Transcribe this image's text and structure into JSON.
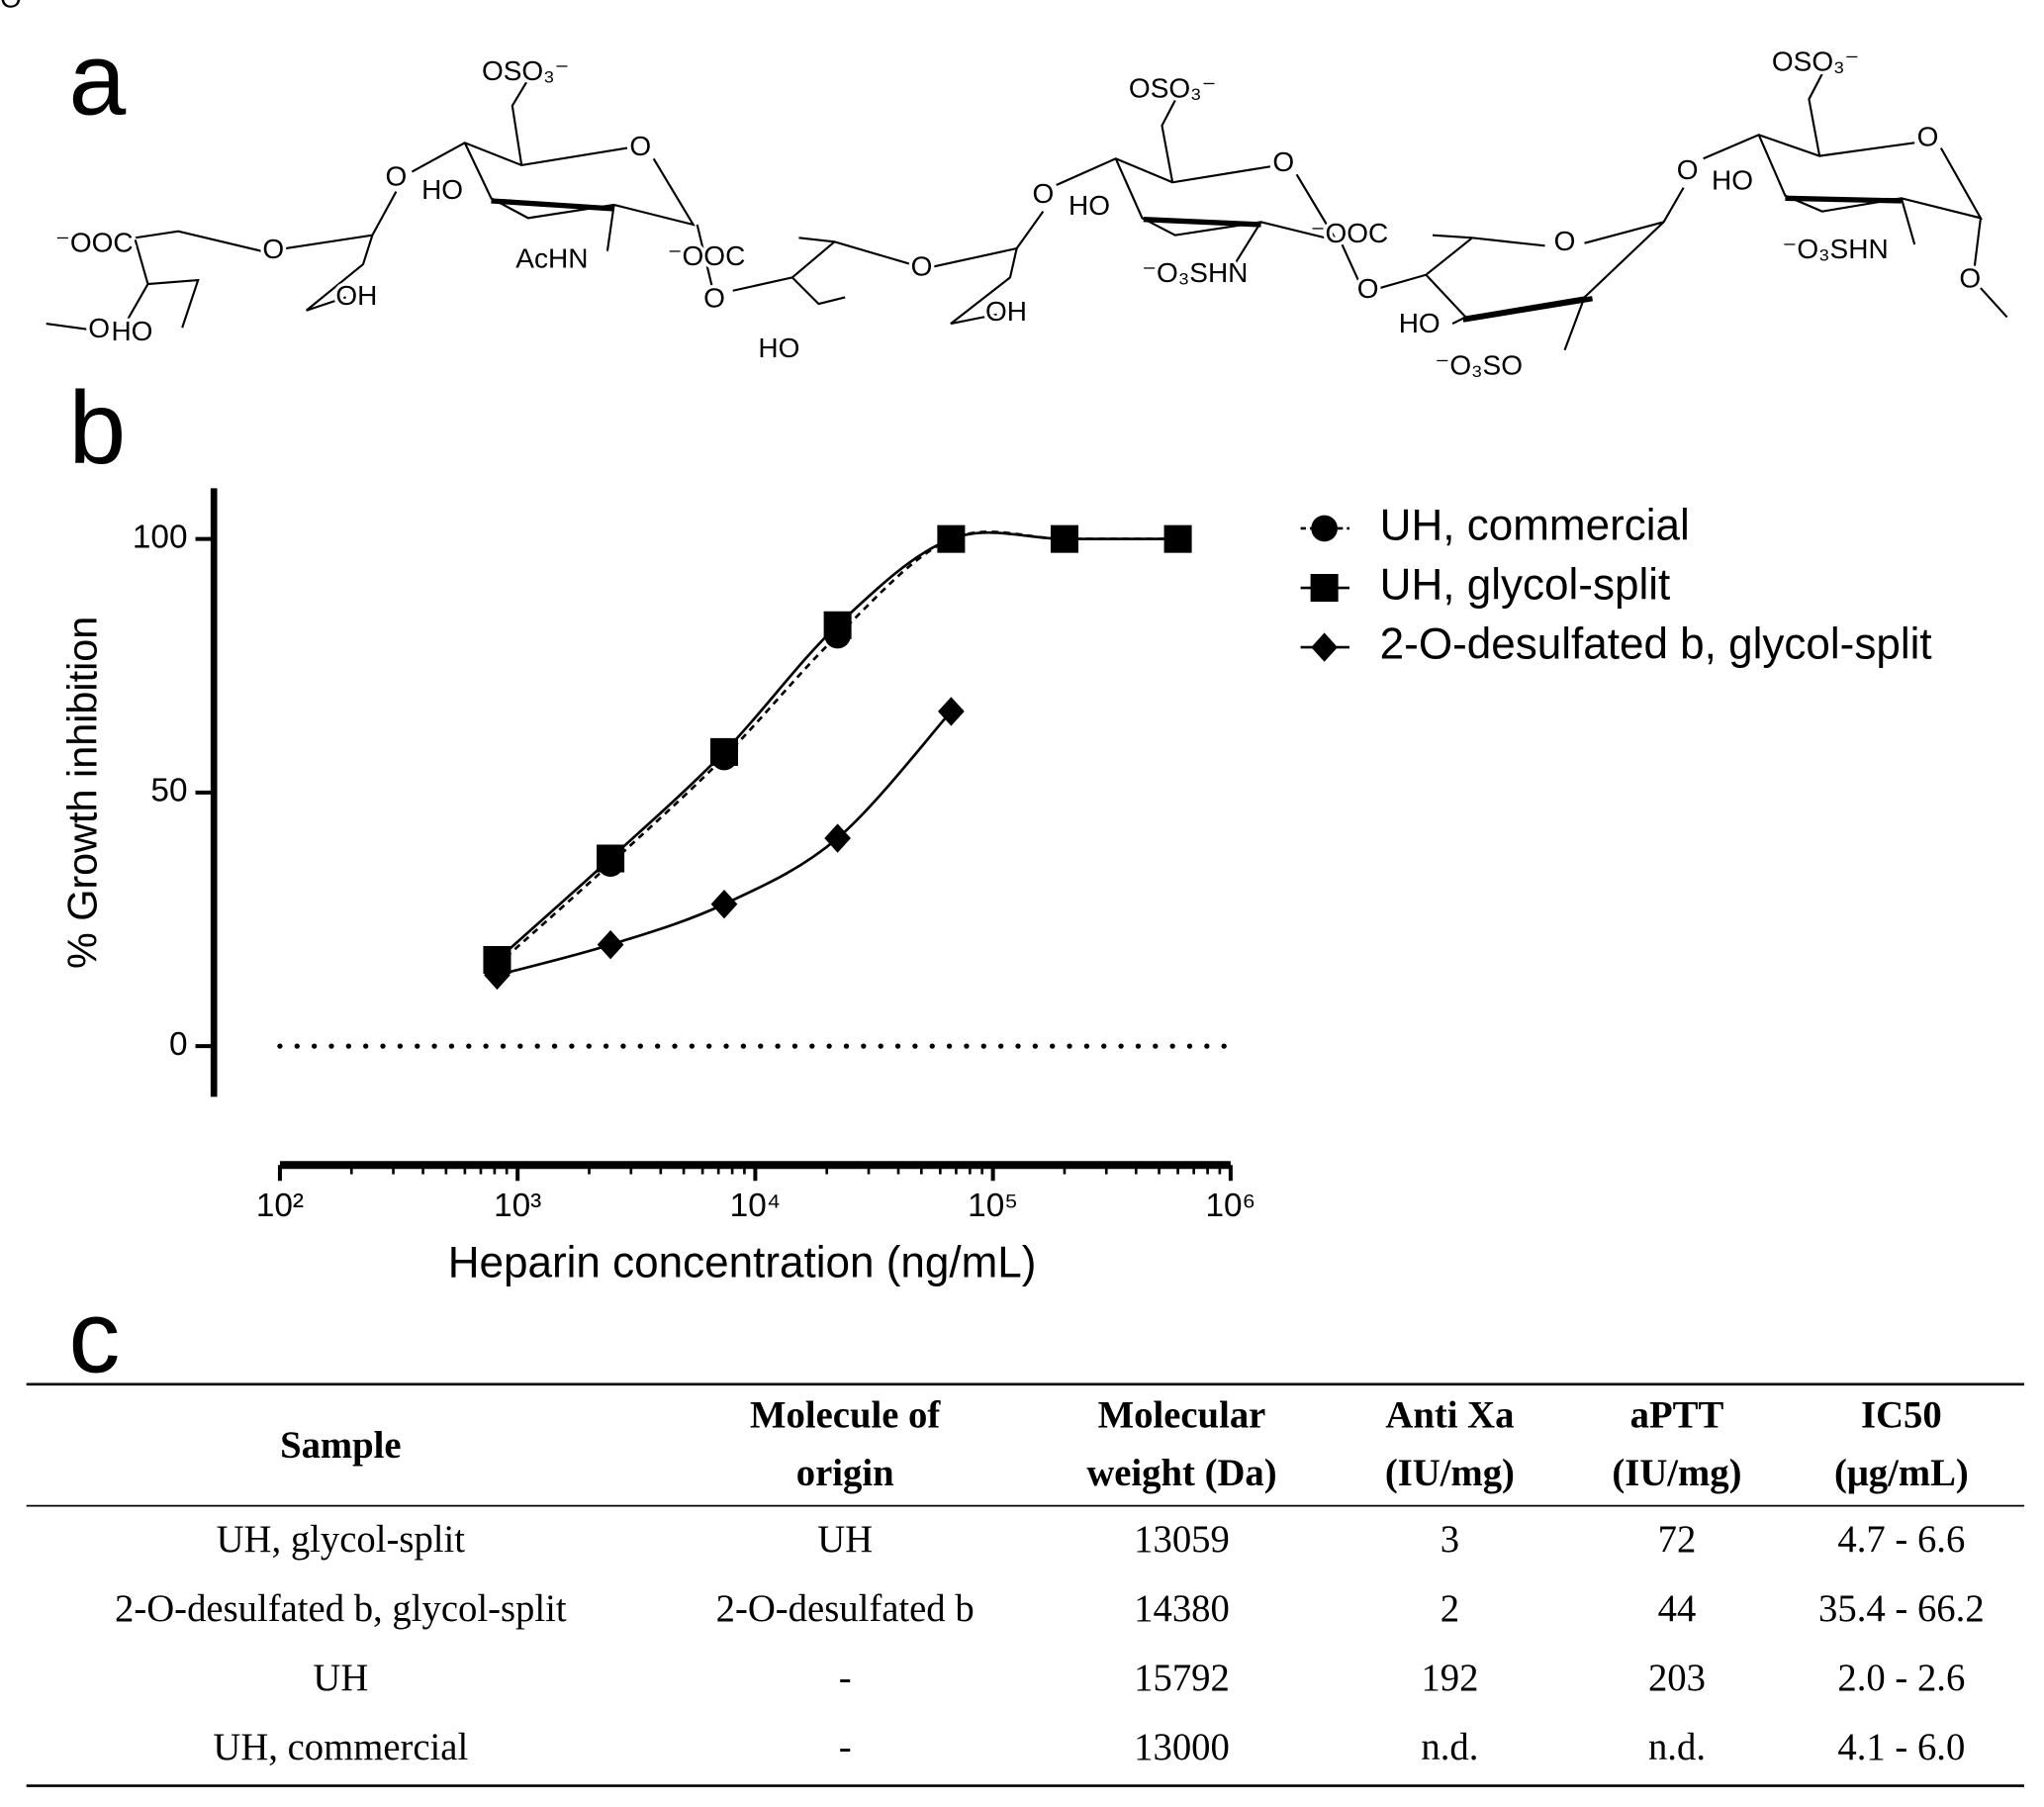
{
  "panels": {
    "a": "a",
    "b": "b",
    "c": "c"
  },
  "structure": {
    "labels": [
      "OSO₃⁻",
      "OSO₃⁻",
      "OSO₃⁻",
      "HO",
      "HO",
      "HO",
      "AcHN",
      "⁻OOC",
      "⁻OOC",
      "⁻OOC",
      "OH",
      "OH",
      "O",
      "HO",
      "HO",
      "HO",
      "⁻O₃SHN",
      "⁻O₃SHN",
      "⁻O₃SO",
      "O",
      "O",
      "O",
      "O",
      "O",
      "O",
      "O",
      "O",
      "O",
      "O",
      "O",
      "O",
      "O"
    ]
  },
  "chart_data": {
    "type": "scatter",
    "x_label": "Heparin concentration (ng/mL)",
    "y_label": "% Growth inhibition",
    "log_x": true,
    "xlim": [
      100,
      1000000
    ],
    "xticks": [
      {
        "value": 100,
        "label": "10²"
      },
      {
        "value": 1000,
        "label": "10³"
      },
      {
        "value": 10000,
        "label": "10⁴"
      },
      {
        "value": 100000,
        "label": "10⁵"
      },
      {
        "value": 1000000,
        "label": "10⁶"
      }
    ],
    "ylim": [
      -10,
      110
    ],
    "yticks": [
      0,
      50,
      100
    ],
    "zero_line": true,
    "legend": "top-right",
    "series": [
      {
        "name": "UH, commercial",
        "marker": "circle",
        "line_style": "dashed",
        "color": "#000000",
        "x": [
          820,
          2460,
          7400,
          22200,
          66700,
          200000,
          600000
        ],
        "values": [
          16,
          36,
          57,
          81,
          100,
          100,
          100
        ]
      },
      {
        "name": "UH, glycol-split",
        "marker": "square",
        "line_style": "solid",
        "color": "#000000",
        "x": [
          820,
          2460,
          7400,
          22200,
          66700,
          200000,
          600000
        ],
        "values": [
          17,
          37,
          58,
          83,
          100,
          100,
          100
        ]
      },
      {
        "name": "2-O-desulfated b, glycol-split",
        "marker": "diamond",
        "line_style": "solid",
        "color": "#000000",
        "x": [
          820,
          2460,
          7400,
          22200,
          66700
        ],
        "values": [
          14,
          20,
          28,
          41,
          66
        ]
      }
    ]
  },
  "table": {
    "header": [
      [
        "Sample"
      ],
      [
        "Molecule of",
        "origin"
      ],
      [
        "Molecular",
        "weight (Da)"
      ],
      [
        "Anti Xa",
        "(IU/mg)"
      ],
      [
        "aPTT",
        "(IU/mg)"
      ],
      [
        "IC50",
        "(μg/mL)"
      ]
    ],
    "rows": [
      [
        "UH, glycol-split",
        "UH",
        "13059",
        "3",
        "72",
        "4.7 - 6.6"
      ],
      [
        "2-O-desulfated b, glycol-split",
        "2-O-desulfated b",
        "14380",
        "2",
        "44",
        "35.4 - 66.2"
      ],
      [
        "UH",
        "-",
        "15792",
        "192",
        "203",
        "2.0 - 2.6"
      ],
      [
        "UH, commercial",
        "-",
        "13000",
        "n.d.",
        "n.d.",
        "4.1 - 6.0"
      ]
    ]
  }
}
